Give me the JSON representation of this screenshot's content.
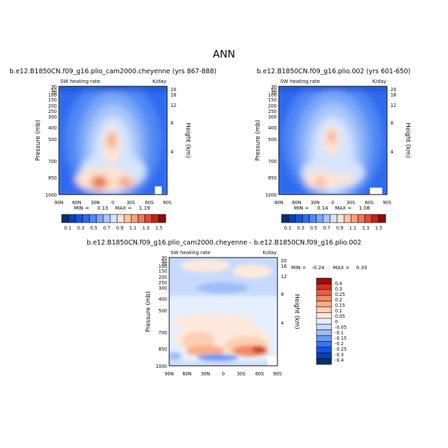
{
  "figure": {
    "season": "ANN",
    "top_colors": [
      "#08306b",
      "#0a3fb8",
      "#1553e0",
      "#2f6bef",
      "#5088f4",
      "#7aa7f7",
      "#a8c6fa",
      "#d6e4fc",
      "#fde4d2",
      "#fbc4a4",
      "#f7a07c",
      "#ef7757",
      "#e04b32",
      "#c0261a",
      "#8c0d0d"
    ],
    "diff_colors": [
      "#08306b",
      "#0a3fb8",
      "#1553e0",
      "#3a74f0",
      "#6b9af5",
      "#9dbdf8",
      "#c7dafb",
      "#e6effd",
      "#fde9dc",
      "#fbcfb3",
      "#f8ae88",
      "#f28a63",
      "#e8603e",
      "#d03322",
      "#9e0c0c"
    ]
  },
  "chart_data": [
    {
      "type": "heatmap",
      "title": "b.e12.B1850CN.f09_g16.plio_cam2000.cheyenne (yrs 867-888)",
      "subtitle_left": "SW heating rate",
      "subtitle_right": "K/day",
      "ylabel": "Pressure (mb)",
      "ylabel_right": "Height (km)",
      "x_ticks": [
        "90N",
        "60N",
        "30N",
        "0",
        "30S",
        "60S",
        "90S"
      ],
      "y_ticks": [
        "30",
        "50",
        "70",
        "100",
        "150",
        "200",
        "250",
        "300",
        "400",
        "500",
        "700",
        "850",
        "1000"
      ],
      "y_ticks_right": [
        "20",
        "16",
        "12",
        "8",
        "4"
      ],
      "min_label": "MIN =",
      "min": "0.13",
      "max_label": "MAX =",
      "max": "1.19",
      "colorbar_labels": [
        "0.1",
        "0.3",
        "0.5",
        "0.7",
        "0.9",
        "1.1",
        "1.3",
        "1.5"
      ]
    },
    {
      "type": "heatmap",
      "title": "b.e12.B1850CN.f09_g16.plio.002 (yrs 601-650)",
      "subtitle_left": "SW heating rate",
      "subtitle_right": "K/day",
      "ylabel": "Pressure (mb)",
      "ylabel_right": "Height (km)",
      "x_ticks": [
        "90N",
        "60N",
        "30N",
        "0",
        "30S",
        "60S",
        "90S"
      ],
      "y_ticks": [
        "30",
        "50",
        "70",
        "100",
        "150",
        "200",
        "250",
        "300",
        "400",
        "500",
        "700",
        "850",
        "1000"
      ],
      "y_ticks_right": [
        "20",
        "16",
        "12",
        "8",
        "4"
      ],
      "min_label": "MIN =",
      "min": "0.14",
      "max_label": "MAX =",
      "max": "1.08",
      "colorbar_labels": [
        "0.1",
        "0.3",
        "0.5",
        "0.7",
        "0.9",
        "1.1",
        "1.3",
        "1.5"
      ]
    },
    {
      "type": "heatmap",
      "title": "b.e12.B1850CN.f09_g16.plio_cam2000.cheyenne - b.e12.B1850CN.f09_g16.plio.002",
      "subtitle_left": "SW heating rate",
      "subtitle_right": "K/day",
      "ylabel": "Pressure (mb)",
      "ylabel_right": "Height (km)",
      "x_ticks": [
        "90N",
        "60N",
        "30N",
        "0",
        "30S",
        "60S",
        "90S"
      ],
      "y_ticks": [
        "30",
        "50",
        "70",
        "100",
        "150",
        "200",
        "250",
        "300",
        "400",
        "500",
        "700",
        "850",
        "1000"
      ],
      "y_ticks_right": [
        "20",
        "16",
        "12",
        "8",
        "4"
      ],
      "min_label": "MIN =",
      "min": "-0.24",
      "max_label": "MAX =",
      "max": "0.33",
      "colorbar_labels": [
        "0.4",
        "0.3",
        "0.25",
        "0.2",
        "0.15",
        "0.1",
        "0.05",
        "0",
        "-0.05",
        "-0.1",
        "-0.15",
        "-0.2",
        "-0.25",
        "-0.3",
        "-0.4"
      ]
    }
  ]
}
